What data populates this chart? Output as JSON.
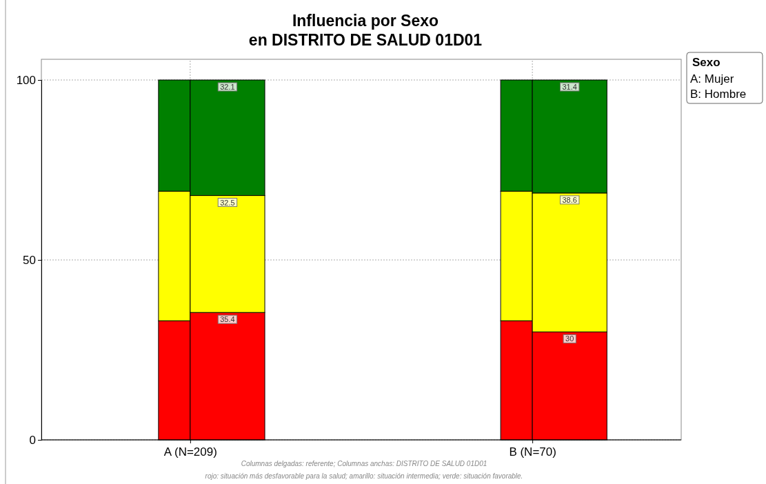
{
  "chart_data": {
    "type": "bar",
    "title": "Influencia por Sexo\nen DISTRITO DE SALUD 01D01",
    "legend_title": "Sexo",
    "categories": [
      "A (N=209)",
      "B (N=70)"
    ],
    "series": [
      {
        "color": "#ff0000",
        "values": [
          33.1,
          33.1
        ],
        "base": [
          0,
          0
        ]
      },
      {
        "color": "#ffff00",
        "values": [
          36.0,
          36.0
        ],
        "base": [
          33.1,
          33.1
        ]
      },
      {
        "color": "#008000",
        "values": [
          30.9,
          30.9
        ],
        "base": [
          69.1,
          69.1
        ]
      },
      {
        "color": "#ff0000",
        "values": [
          35.4,
          30
        ],
        "base": [
          0,
          0
        ],
        "value_labels": [
          "35.4",
          "30"
        ]
      },
      {
        "color": "#ffff00",
        "values": [
          32.5,
          38.6
        ],
        "base": [
          35.4,
          30
        ],
        "value_labels": [
          "32.5",
          "38.6"
        ]
      },
      {
        "color": "#008000",
        "values": [
          32.1,
          31.4
        ],
        "base": [
          67.9,
          68.6
        ],
        "value_labels": [
          "32.1",
          "31.4"
        ]
      }
    ],
    "ylim": [
      0,
      100
    ],
    "yticks": [
      0,
      50,
      100
    ],
    "grid": true,
    "annotations": [
      "A: Mujer",
      "B: Hombre",
      "Columnas delgadas: referente; Columnas anchas: DISTRITO DE SALUD 01D01",
      "rojo: situación más desfavorable para la salud; amarillo: situación intermedia; verde: situación favorable."
    ]
  }
}
